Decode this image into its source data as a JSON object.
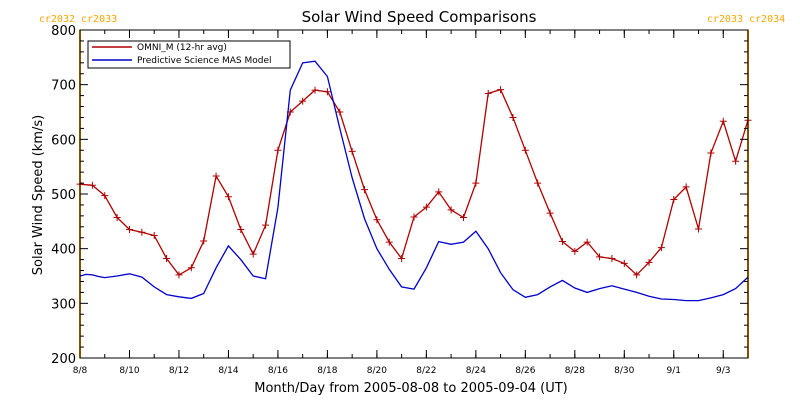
{
  "chart_data": {
    "type": "line",
    "title": "Solar Wind Speed Comparisons",
    "xlabel": "Month/Day from 2005-08-08 to 2005-09-04 (UT)",
    "ylabel": "Solar Wind Speed (km/s)",
    "xlim": [
      "2005-08-08",
      "2005-09-04"
    ],
    "ylim": [
      200,
      800
    ],
    "y_ticks": [
      200,
      300,
      400,
      500,
      600,
      700,
      800
    ],
    "x_ticks": [
      {
        "date": "2005-08-08",
        "label": "8/8"
      },
      {
        "date": "2005-08-10",
        "label": "8/10"
      },
      {
        "date": "2005-08-12",
        "label": "8/12"
      },
      {
        "date": "2005-08-14",
        "label": "8/14"
      },
      {
        "date": "2005-08-16",
        "label": "8/16"
      },
      {
        "date": "2005-08-18",
        "label": "8/18"
      },
      {
        "date": "2005-08-20",
        "label": "8/20"
      },
      {
        "date": "2005-08-22",
        "label": "8/22"
      },
      {
        "date": "2005-08-24",
        "label": "8/24"
      },
      {
        "date": "2005-08-26",
        "label": "8/26"
      },
      {
        "date": "2005-08-28",
        "label": "8/28"
      },
      {
        "date": "2005-08-30",
        "label": "8/30"
      },
      {
        "date": "2005-09-01",
        "label": "9/1"
      },
      {
        "date": "2005-09-03",
        "label": "9/3"
      }
    ],
    "grid": false,
    "legend_position": "top-left",
    "rotation_markers": [
      {
        "date": "2005-08-08",
        "label": "cr2032 cr2033",
        "color": "#ffa500"
      },
      {
        "date": "2005-09-04",
        "label": "cr2033 cr2034",
        "color": "#ffa500"
      }
    ],
    "series": [
      {
        "name": "OMNI_M (12-hr avg)",
        "color": "#b00000",
        "marker": "plus",
        "x": [
          "2005-08-08 00:00",
          "2005-08-08 12:00",
          "2005-08-09 00:00",
          "2005-08-09 12:00",
          "2005-08-10 00:00",
          "2005-08-10 12:00",
          "2005-08-11 00:00",
          "2005-08-11 12:00",
          "2005-08-12 00:00",
          "2005-08-12 12:00",
          "2005-08-13 00:00",
          "2005-08-13 12:00",
          "2005-08-14 00:00",
          "2005-08-14 12:00",
          "2005-08-15 00:00",
          "2005-08-15 12:00",
          "2005-08-16 00:00",
          "2005-08-16 12:00",
          "2005-08-17 00:00",
          "2005-08-17 12:00",
          "2005-08-18 00:00",
          "2005-08-18 12:00",
          "2005-08-19 00:00",
          "2005-08-19 12:00",
          "2005-08-20 00:00",
          "2005-08-20 12:00",
          "2005-08-21 00:00",
          "2005-08-21 12:00",
          "2005-08-22 00:00",
          "2005-08-22 12:00",
          "2005-08-23 00:00",
          "2005-08-23 12:00",
          "2005-08-24 00:00",
          "2005-08-24 12:00",
          "2005-08-25 00:00",
          "2005-08-25 12:00",
          "2005-08-26 00:00",
          "2005-08-26 12:00",
          "2005-08-27 00:00",
          "2005-08-27 12:00",
          "2005-08-28 00:00",
          "2005-08-28 12:00",
          "2005-08-29 00:00",
          "2005-08-29 12:00",
          "2005-08-30 00:00",
          "2005-08-30 12:00",
          "2005-08-31 00:00",
          "2005-08-31 12:00",
          "2005-09-01 00:00",
          "2005-09-01 12:00",
          "2005-09-02 00:00",
          "2005-09-02 12:00",
          "2005-09-03 00:00",
          "2005-09-03 12:00",
          "2005-09-04 00:00"
        ],
        "values": [
          518,
          516,
          497,
          457,
          435,
          430,
          424,
          382,
          352,
          365,
          414,
          533,
          495,
          435,
          390,
          443,
          580,
          650,
          670,
          690,
          687,
          650,
          578,
          508,
          453,
          412,
          382,
          458,
          476,
          504,
          471,
          457,
          520,
          684,
          691,
          640,
          580,
          520,
          465,
          413,
          395,
          412,
          385,
          382,
          373,
          352,
          375,
          402,
          490,
          513,
          436,
          575,
          633,
          560,
          635
        ]
      },
      {
        "name": "Predictive Science MAS Model",
        "color": "#0000cc",
        "marker": "none",
        "x": [
          "2005-08-08 00:00",
          "2005-08-08 06:00",
          "2005-08-08 12:00",
          "2005-08-08 18:00",
          "2005-08-09 00:00",
          "2005-08-09 12:00",
          "2005-08-10 00:00",
          "2005-08-10 12:00",
          "2005-08-11 00:00",
          "2005-08-11 12:00",
          "2005-08-12 00:00",
          "2005-08-12 12:00",
          "2005-08-13 00:00",
          "2005-08-13 12:00",
          "2005-08-14 00:00",
          "2005-08-14 12:00",
          "2005-08-15 00:00",
          "2005-08-15 12:00",
          "2005-08-16 00:00",
          "2005-08-16 12:00",
          "2005-08-17 00:00",
          "2005-08-17 12:00",
          "2005-08-18 00:00",
          "2005-08-18 12:00",
          "2005-08-19 00:00",
          "2005-08-19 12:00",
          "2005-08-20 00:00",
          "2005-08-20 12:00",
          "2005-08-21 00:00",
          "2005-08-21 12:00",
          "2005-08-22 00:00",
          "2005-08-22 12:00",
          "2005-08-23 00:00",
          "2005-08-23 12:00",
          "2005-08-24 00:00",
          "2005-08-24 12:00",
          "2005-08-25 00:00",
          "2005-08-25 12:00",
          "2005-08-26 00:00",
          "2005-08-26 12:00",
          "2005-08-27 00:00",
          "2005-08-27 12:00",
          "2005-08-28 00:00",
          "2005-08-28 12:00",
          "2005-08-29 00:00",
          "2005-08-29 12:00",
          "2005-08-30 00:00",
          "2005-08-30 12:00",
          "2005-08-31 00:00",
          "2005-08-31 12:00",
          "2005-09-01 00:00",
          "2005-09-01 12:00",
          "2005-09-02 00:00",
          "2005-09-02 12:00",
          "2005-09-03 00:00",
          "2005-09-03 12:00",
          "2005-09-04 00:00"
        ],
        "values": [
          350,
          353,
          352,
          349,
          347,
          350,
          354,
          348,
          330,
          316,
          312,
          309,
          318,
          365,
          405,
          380,
          350,
          345,
          475,
          690,
          740,
          743,
          715,
          620,
          530,
          455,
          400,
          362,
          330,
          326,
          365,
          413,
          408,
          412,
          432,
          400,
          356,
          325,
          311,
          316,
          330,
          342,
          328,
          320,
          327,
          332,
          326,
          320,
          313,
          308,
          307,
          305,
          305,
          310,
          316,
          327,
          348
        ]
      }
    ]
  }
}
